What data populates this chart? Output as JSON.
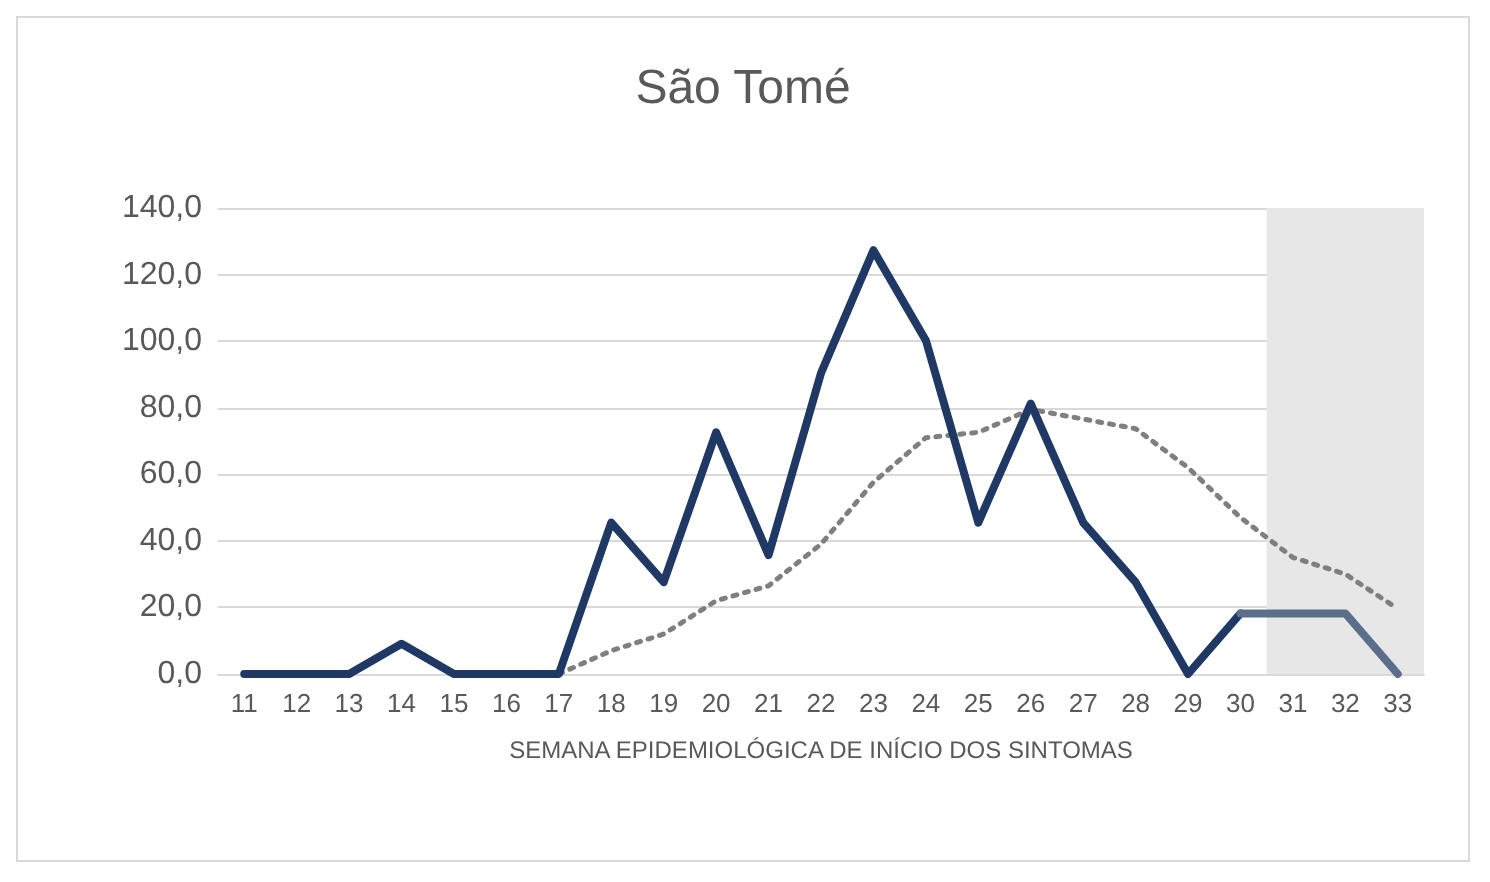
{
  "chart_data": {
    "type": "line",
    "title": "São Tomé",
    "xlabel": "SEMANA EPIDEMIOLÓGICA DE INÍCIO DOS SINTOMAS",
    "x": [
      11,
      12,
      13,
      14,
      15,
      16,
      17,
      18,
      19,
      20,
      21,
      22,
      23,
      24,
      25,
      26,
      27,
      28,
      29,
      30
    ],
    "series": [
      {
        "color": "#1f3864",
        "values": [
          0,
          0,
          0,
          9.1,
          0,
          0,
          0,
          45.5,
          27.6,
          72.6,
          35.7,
          90.4,
          127.3,
          100.2,
          45.5,
          81.2,
          45.5,
          27.6,
          0,
          18.2
        ]
      },
      {
        "color": "#5b6e8c",
        "x": [
          30,
          31,
          32,
          33
        ],
        "values": [
          18.2,
          18.2,
          18.2,
          0
        ]
      },
      {
        "color": "#7f7f7f",
        "line_style": "dotted",
        "x": [
          17,
          18,
          19,
          20,
          21,
          22,
          23,
          24,
          25,
          26,
          27,
          28,
          29,
          30,
          31,
          32,
          33
        ],
        "values": [
          0,
          7,
          12,
          22,
          26.5,
          39,
          57.6,
          71,
          72.6,
          79.5,
          76.6,
          73.7,
          62,
          47,
          35,
          30,
          19.6
        ]
      }
    ],
    "xlim": [
      10.5,
      33.5
    ],
    "xticks": [
      11,
      12,
      13,
      14,
      15,
      16,
      17,
      18,
      19,
      20,
      21,
      22,
      23,
      24,
      25,
      26,
      27,
      28,
      29,
      30,
      31,
      32,
      33
    ],
    "ylim": [
      0,
      140
    ],
    "yticks": [
      {
        "value": 0,
        "label": "0,0"
      },
      {
        "value": 20,
        "label": "20,0"
      },
      {
        "value": 40,
        "label": "40,0"
      },
      {
        "value": 60,
        "label": "60,0"
      },
      {
        "value": 80,
        "label": "80,0"
      },
      {
        "value": 100,
        "label": "100,0"
      },
      {
        "value": 120,
        "label": "120,0"
      },
      {
        "value": 140,
        "label": "140,0"
      }
    ],
    "bands": [
      {
        "axis": "x",
        "from": 30.5,
        "to": 33.5,
        "color": "#e7e7e7"
      }
    ],
    "grid": "y",
    "marker": "none",
    "line_style": "solid"
  }
}
